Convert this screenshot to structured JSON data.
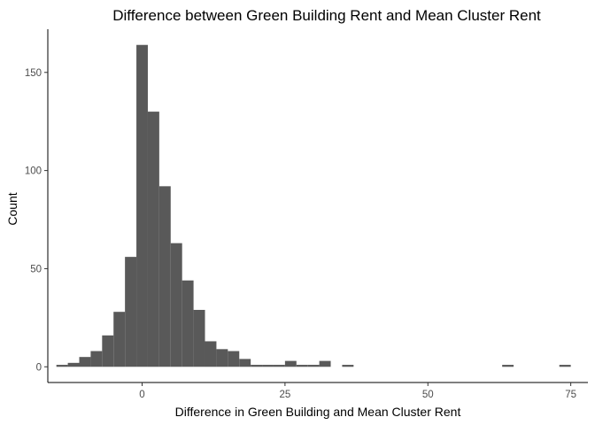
{
  "chart_data": {
    "type": "histogram",
    "title": "Difference between Green Building Rent and Mean Cluster Rent",
    "xlabel": "Difference in Green Building and Mean Cluster Rent",
    "ylabel": "Count",
    "bin_width": 2,
    "xlim": [
      -16.5,
      78
    ],
    "ylim": [
      -8,
      172
    ],
    "x_ticks": [
      0,
      25,
      50,
      75
    ],
    "y_ticks": [
      0,
      50,
      100,
      150
    ],
    "grid": false,
    "bar_color": "#595959",
    "bins": [
      {
        "x0": -15,
        "x1": -13,
        "count": 1
      },
      {
        "x0": -13,
        "x1": -11,
        "count": 2
      },
      {
        "x0": -11,
        "x1": -9,
        "count": 5
      },
      {
        "x0": -9,
        "x1": -7,
        "count": 8
      },
      {
        "x0": -7,
        "x1": -5,
        "count": 16
      },
      {
        "x0": -5,
        "x1": -3,
        "count": 28
      },
      {
        "x0": -3,
        "x1": -1,
        "count": 56
      },
      {
        "x0": -1,
        "x1": 1,
        "count": 164
      },
      {
        "x0": 1,
        "x1": 3,
        "count": 130
      },
      {
        "x0": 3,
        "x1": 5,
        "count": 92
      },
      {
        "x0": 5,
        "x1": 7,
        "count": 63
      },
      {
        "x0": 7,
        "x1": 9,
        "count": 44
      },
      {
        "x0": 9,
        "x1": 11,
        "count": 29
      },
      {
        "x0": 11,
        "x1": 13,
        "count": 13
      },
      {
        "x0": 13,
        "x1": 15,
        "count": 9
      },
      {
        "x0": 15,
        "x1": 17,
        "count": 8
      },
      {
        "x0": 17,
        "x1": 19,
        "count": 4
      },
      {
        "x0": 19,
        "x1": 21,
        "count": 1
      },
      {
        "x0": 21,
        "x1": 23,
        "count": 1
      },
      {
        "x0": 23,
        "x1": 25,
        "count": 1
      },
      {
        "x0": 25,
        "x1": 27,
        "count": 3
      },
      {
        "x0": 27,
        "x1": 29,
        "count": 1
      },
      {
        "x0": 29,
        "x1": 31,
        "count": 1
      },
      {
        "x0": 31,
        "x1": 33,
        "count": 3
      },
      {
        "x0": 35,
        "x1": 37,
        "count": 1
      },
      {
        "x0": 63,
        "x1": 65,
        "count": 1
      },
      {
        "x0": 73,
        "x1": 75,
        "count": 1
      }
    ]
  }
}
